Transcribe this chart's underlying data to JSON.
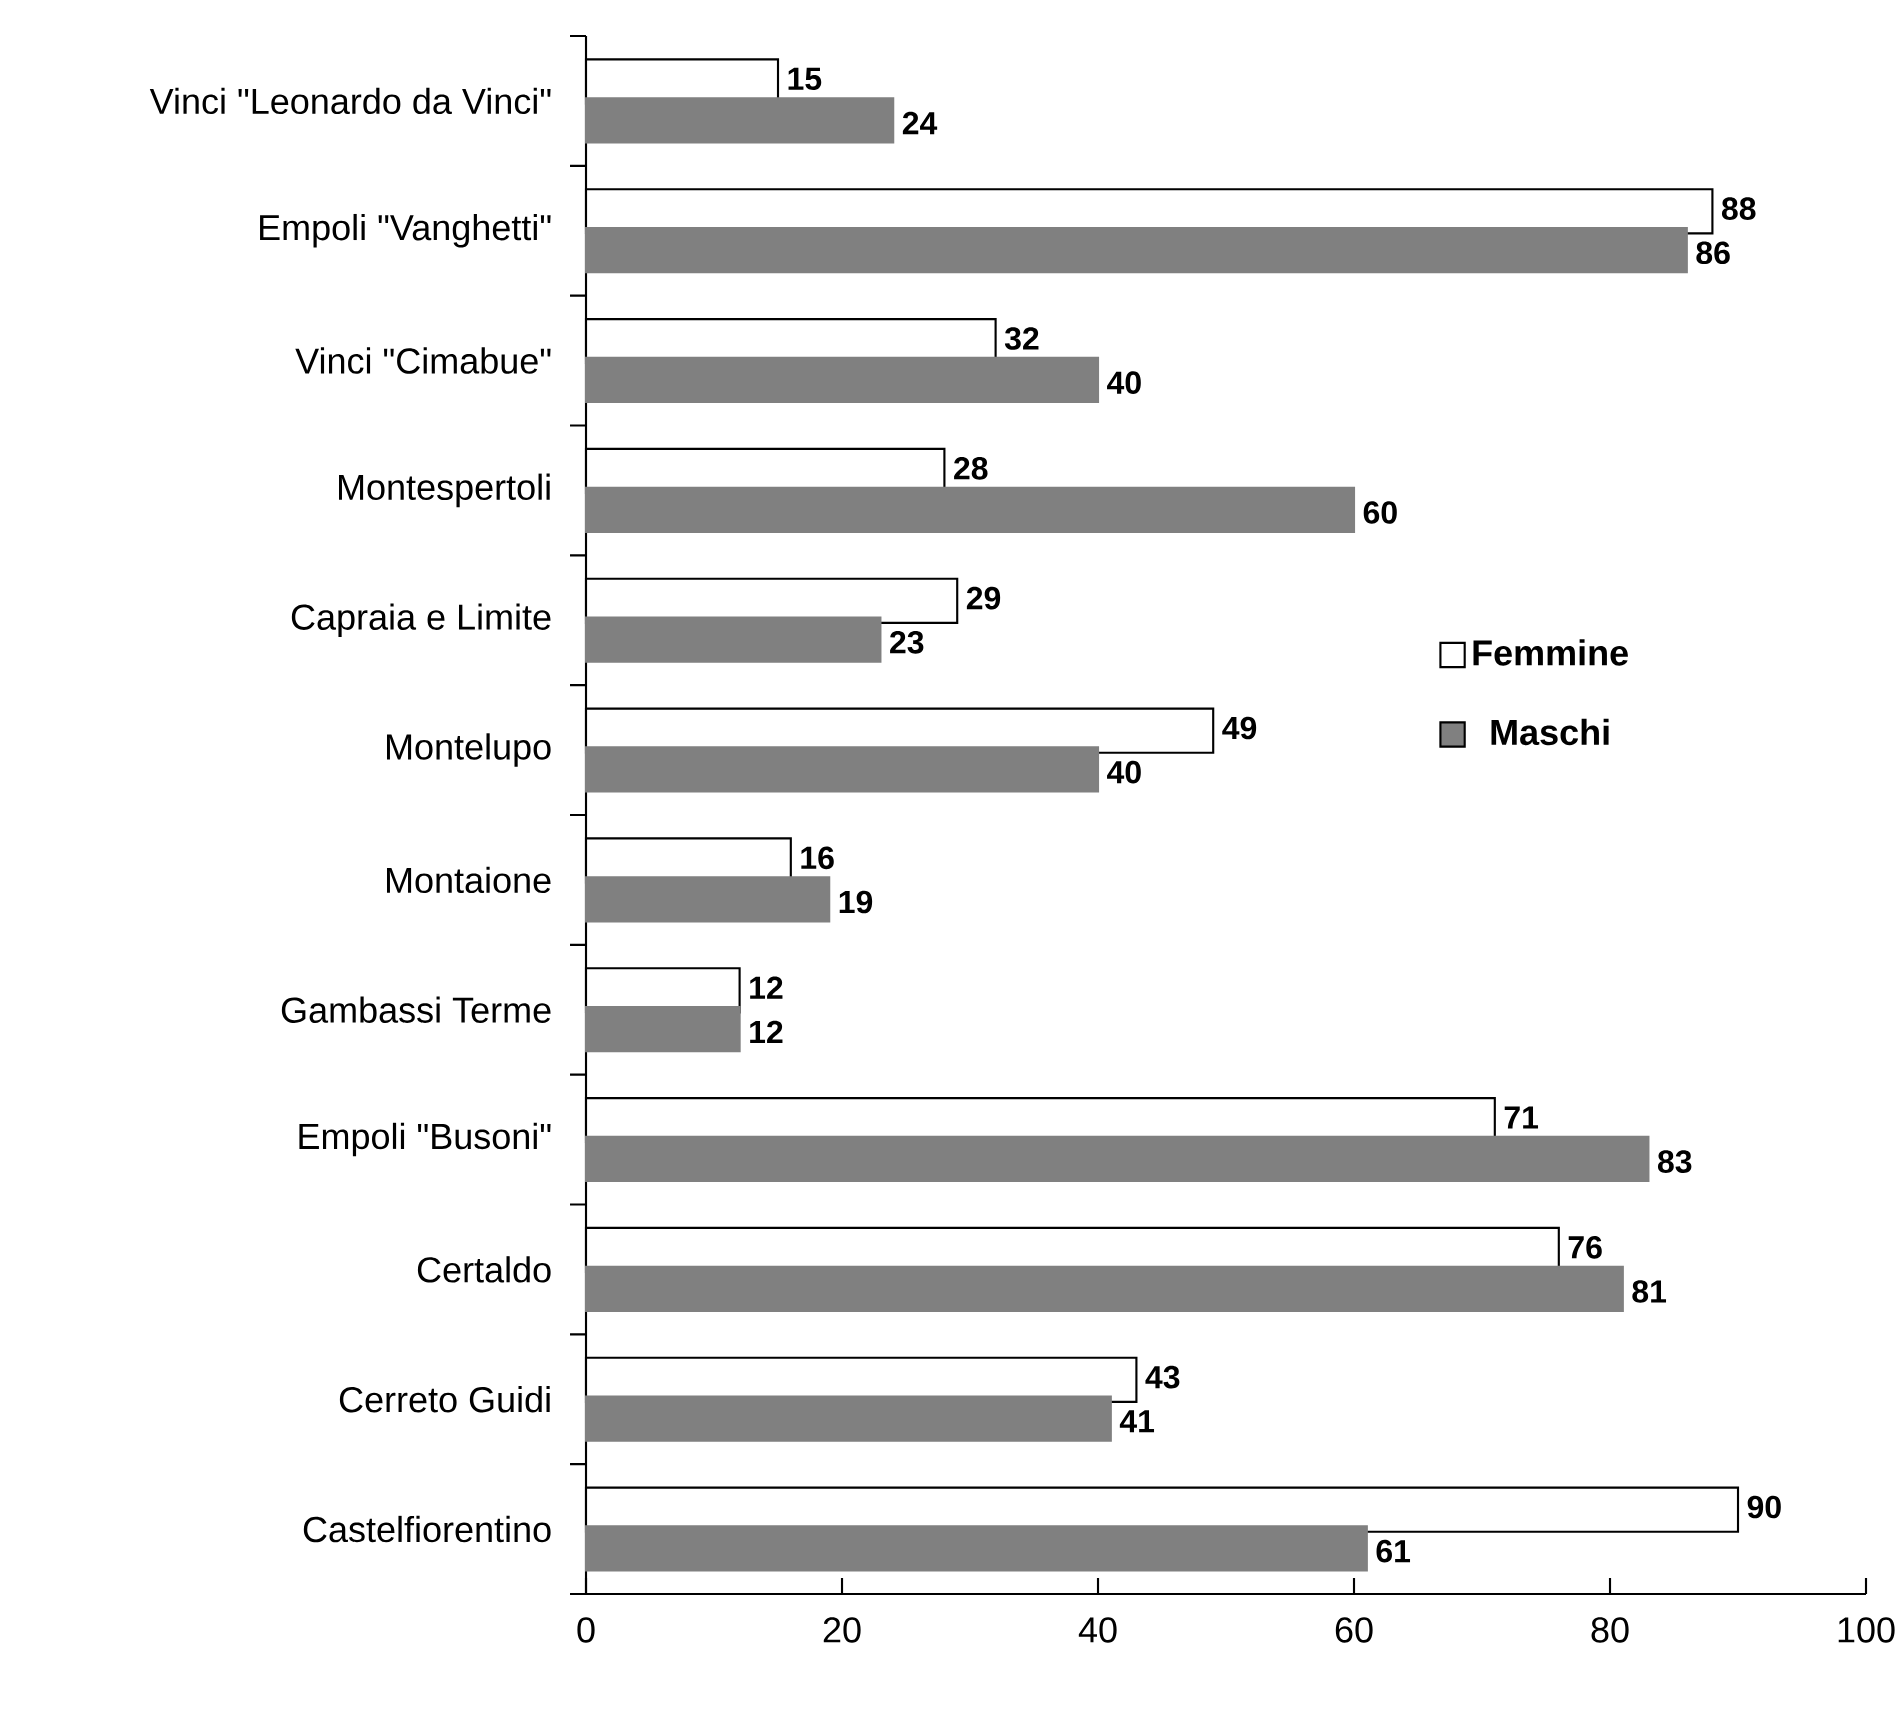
{
  "chart_data": {
    "type": "bar",
    "orientation": "horizontal",
    "categories": [
      "Vinci \"Leonardo da Vinci\"",
      "Empoli \"Vanghetti\"",
      "Vinci \"Cimabue\"",
      "Montespertoli",
      "Capraia e Limite",
      "Montelupo",
      "Montaione",
      "Gambassi Terme",
      "Empoli \"Busoni\"",
      "Certaldo",
      "Cerreto Guidi",
      "Castelfiorentino"
    ],
    "series": [
      {
        "name": "Femmine",
        "color": "#ffffff",
        "values": [
          15,
          88,
          32,
          28,
          29,
          49,
          16,
          12,
          71,
          76,
          43,
          90
        ]
      },
      {
        "name": "Maschi",
        "color": "#808080",
        "values": [
          24,
          86,
          40,
          60,
          23,
          40,
          19,
          12,
          83,
          81,
          41,
          61
        ]
      }
    ],
    "xlim": [
      0,
      100
    ],
    "xticks": [
      0,
      20,
      40,
      60,
      80,
      100
    ],
    "data_labels": true,
    "legend": "right",
    "grid": false
  }
}
